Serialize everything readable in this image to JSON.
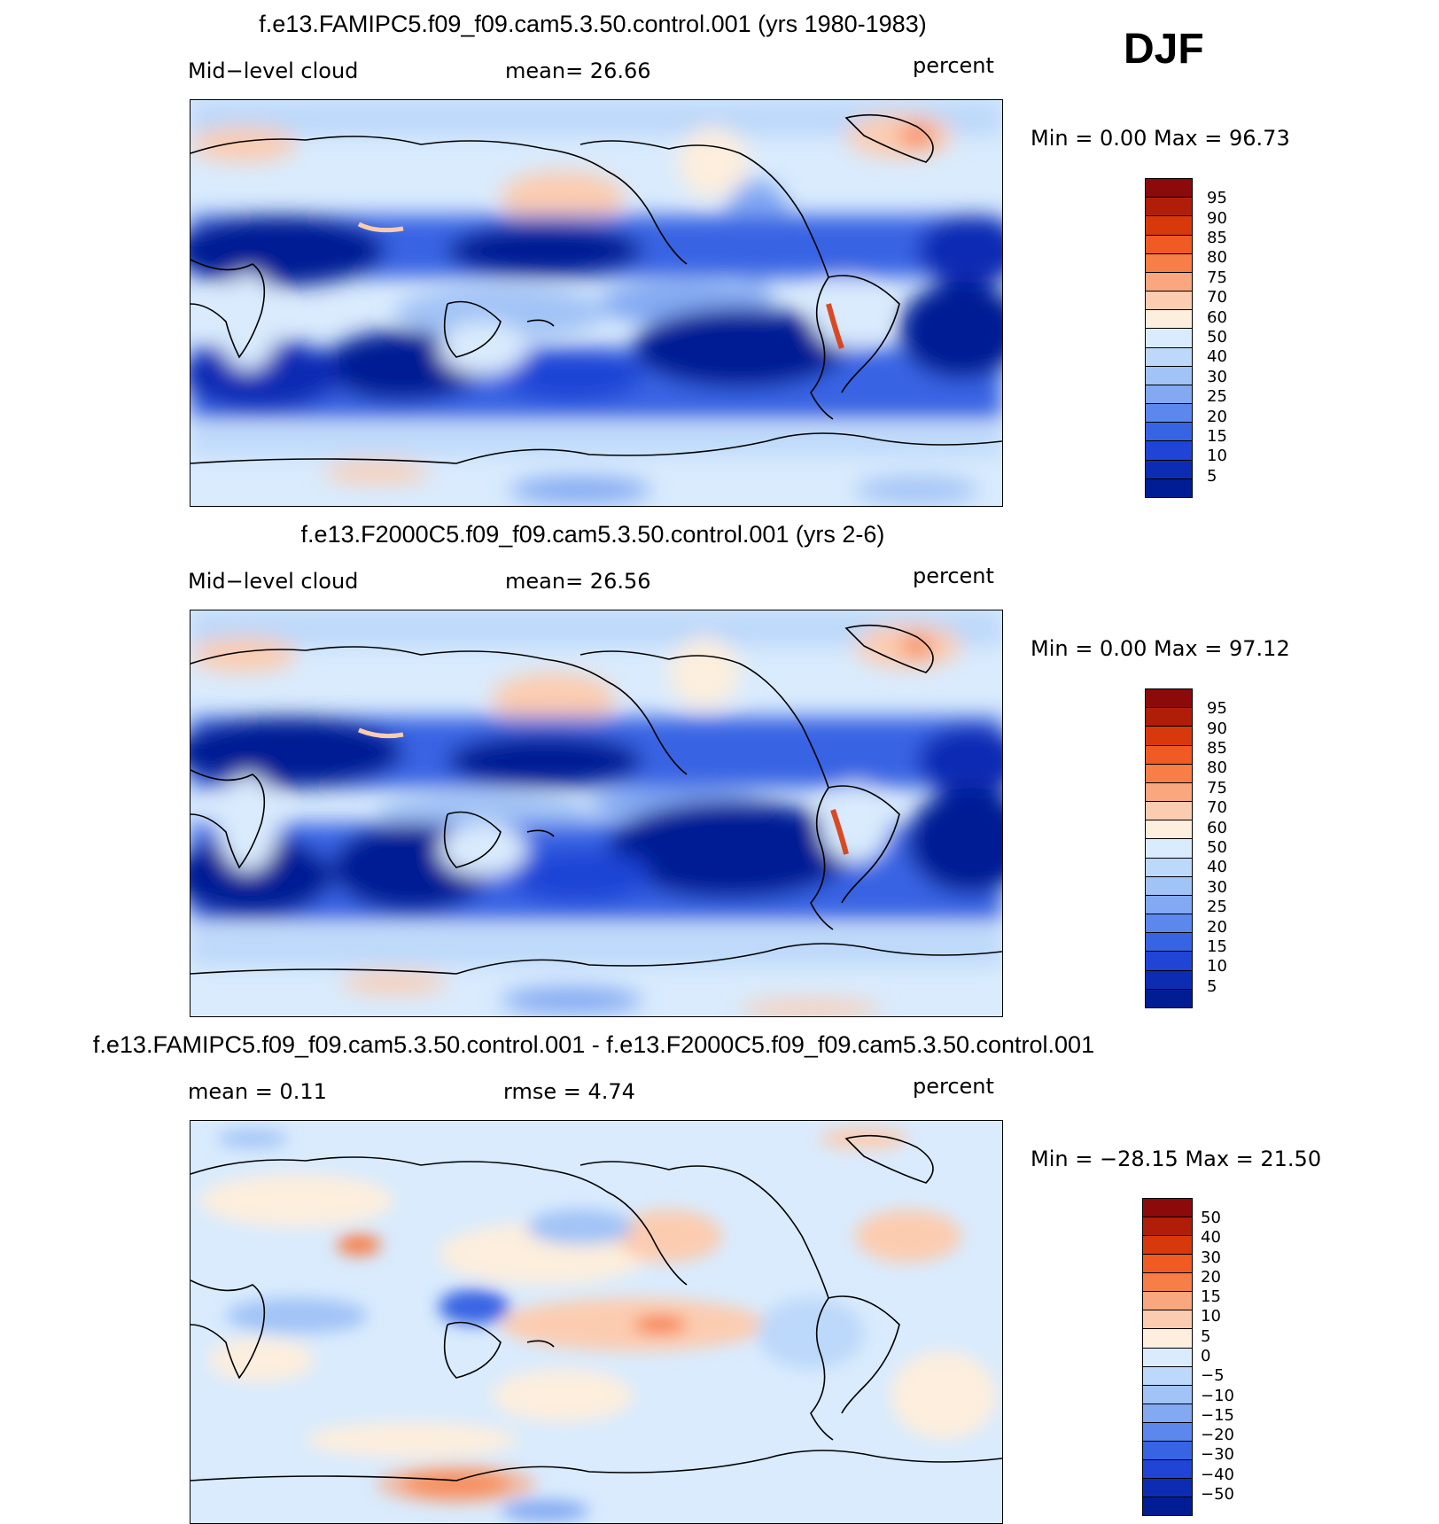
{
  "season": "DJF",
  "palette_abs": [
    "#8c0a0a",
    "#b01e0a",
    "#d8390c",
    "#f25a24",
    "#f77e47",
    "#faa67e",
    "#fcccb0",
    "#fdeedd",
    "#d9ebfd",
    "#bcd8fa",
    "#a1c3f6",
    "#82a9f2",
    "#5c87ec",
    "#3764e3",
    "#1f44d6",
    "#0d2cb4",
    "#001d94"
  ],
  "palette_diff": [
    "#8c0a0a",
    "#b01e0a",
    "#d8390c",
    "#f25a24",
    "#f77e47",
    "#faa67e",
    "#fcccb0",
    "#fdeedd",
    "#d9ebfd",
    "#bcd8fa",
    "#a1c3f6",
    "#82a9f2",
    "#5c87ec",
    "#3764e3",
    "#1f44d6",
    "#0d2cb4",
    "#001d94"
  ],
  "panels": [
    {
      "title": "f.e13.FAMIPC5.f09_f09.cam5.3.50.control.001 (yrs 1980-1983)",
      "left_label": "Mid−level cloud",
      "mid_label": "mean=   26.66",
      "units": "percent",
      "minmax": "Min =    0.00 Max =   96.73",
      "ticks": [
        "95",
        "90",
        "85",
        "80",
        "75",
        "70",
        "60",
        "50",
        "40",
        "30",
        "25",
        "20",
        "15",
        "10",
        "5"
      ]
    },
    {
      "title": "f.e13.F2000C5.f09_f09.cam5.3.50.control.001 (yrs 2-6)",
      "left_label": "Mid−level cloud",
      "mid_label": "mean=   26.56",
      "units": "percent",
      "minmax": "Min =    0.00 Max =   97.12",
      "ticks": [
        "95",
        "90",
        "85",
        "80",
        "75",
        "70",
        "60",
        "50",
        "40",
        "30",
        "25",
        "20",
        "15",
        "10",
        "5"
      ]
    },
    {
      "title": "f.e13.FAMIPC5.f09_f09.cam5.3.50.control.001 - f.e13.F2000C5.f09_f09.cam5.3.50.control.001",
      "left_label": "mean =    0.11",
      "mid_label": "rmse =    4.74",
      "units": "percent",
      "minmax": "Min = −28.15 Max =   21.50",
      "ticks": [
        "50",
        "40",
        "30",
        "20",
        "15",
        "10",
        "5",
        "0",
        "−5",
        "−10",
        "−15",
        "−20",
        "−30",
        "−40",
        "−50"
      ]
    }
  ]
}
